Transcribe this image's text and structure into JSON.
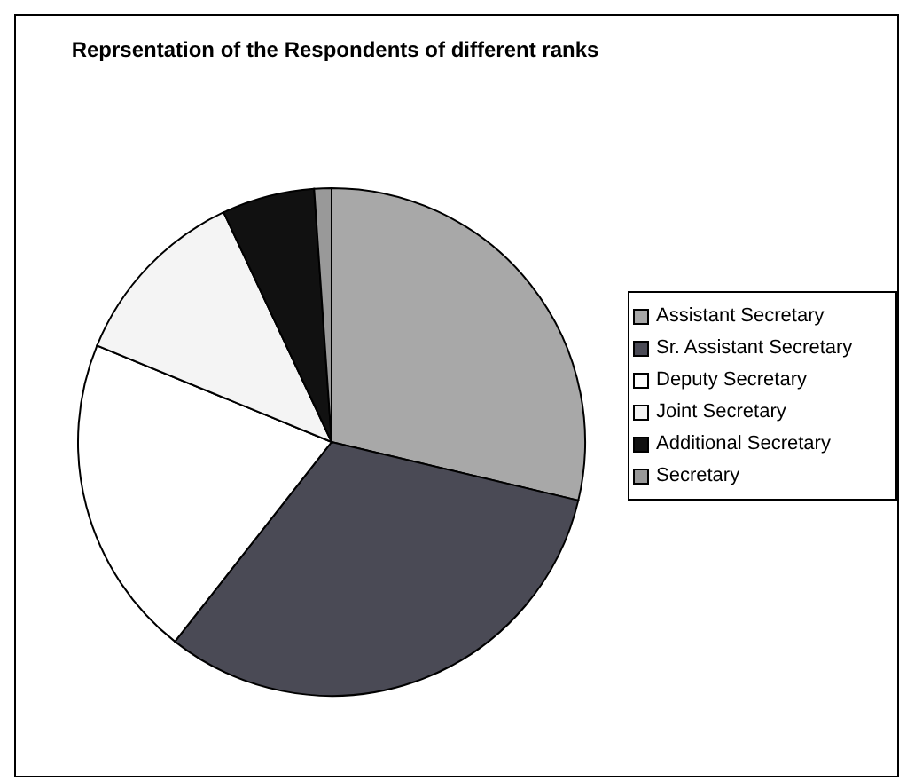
{
  "chart_data": {
    "type": "pie",
    "title": "Reprsentation of the Respondents of different ranks",
    "categories": [
      "Assistant Secretary",
      "Sr. Assistant Secretary",
      "Deputy Secretary",
      "Joint Secretary",
      "Additional Secretary",
      "Secretary"
    ],
    "values": [
      28.7,
      31.9,
      20.6,
      11.8,
      5.9,
      1.1
    ],
    "colors": [
      "#a8a8a8",
      "#4a4a55",
      "#ffffff",
      "#f4f4f4",
      "#111111",
      "#999999"
    ],
    "legend": "right"
  }
}
